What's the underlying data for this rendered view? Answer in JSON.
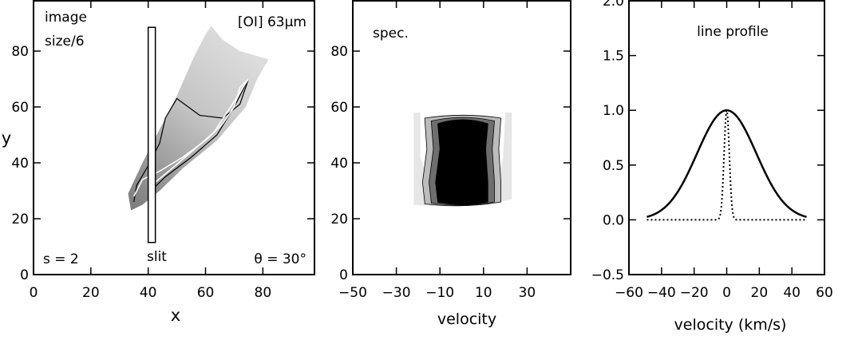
{
  "chart_data": [
    {
      "type": "heatmap",
      "panel": "image",
      "annotations": {
        "top_left_line1": "image",
        "top_left_line2": "size/6",
        "top_right": "[OI] 63μm",
        "bottom_left": "s = 2",
        "bottom_right": "θ = 30°",
        "slit_label": "slit"
      },
      "xlabel": "x",
      "ylabel": "y",
      "xlim": [
        0,
        98
      ],
      "ylim": [
        0,
        98
      ],
      "xticks": [
        0,
        20,
        40,
        60,
        80
      ],
      "yticks": [
        0,
        20,
        40,
        60,
        80
      ],
      "slit": {
        "x": [
          40,
          42.5
        ],
        "y": [
          11.5,
          88.5
        ]
      },
      "emission_region": [
        [
          34,
          23
        ],
        [
          33,
          29
        ],
        [
          38,
          40
        ],
        [
          44,
          52
        ],
        [
          50,
          64
        ],
        [
          56,
          78
        ],
        [
          60,
          86
        ],
        [
          62,
          89
        ],
        [
          66,
          84
        ],
        [
          72,
          80
        ],
        [
          82,
          77
        ],
        [
          78,
          70
        ],
        [
          74,
          60
        ],
        [
          64,
          48
        ],
        [
          52,
          38
        ],
        [
          44,
          30
        ],
        [
          38,
          25
        ]
      ],
      "bright_inner_contour": [
        [
          35,
          28
        ],
        [
          38,
          34
        ],
        [
          44,
          37
        ],
        [
          52,
          42
        ],
        [
          60,
          48
        ],
        [
          66,
          54
        ],
        [
          70,
          60
        ],
        [
          72,
          67
        ],
        [
          75,
          70
        ],
        [
          70,
          62
        ],
        [
          63,
          51
        ],
        [
          54,
          43
        ],
        [
          46,
          36
        ],
        [
          40,
          31
        ]
      ],
      "outer_contour": [
        [
          35,
          26
        ],
        [
          36,
          32
        ],
        [
          40,
          39
        ],
        [
          44,
          47
        ],
        [
          46,
          56
        ],
        [
          50,
          63
        ],
        [
          58,
          57
        ],
        [
          66,
          56
        ],
        [
          72,
          61
        ],
        [
          75,
          70
        ],
        [
          70,
          60
        ],
        [
          64,
          50
        ],
        [
          55,
          42
        ],
        [
          46,
          35
        ],
        [
          40,
          29
        ]
      ],
      "gray_colors": [
        "#dcdcdc",
        "#c4c4c4",
        "#9e9e9e",
        "#7a7a7a"
      ]
    },
    {
      "type": "heatmap",
      "panel": "spectrum",
      "annotation": "spec.",
      "xlabel": "velocity",
      "xlim": [
        -50,
        50
      ],
      "ylim": [
        0,
        98
      ],
      "xticks": [
        -50,
        -30,
        -10,
        10,
        30
      ],
      "yticks": [
        0,
        20,
        40,
        60,
        80
      ],
      "blob_contours": [
        {
          "level": "outer",
          "color": "#e6e6e6",
          "left": [
            [
              -22,
              27
            ],
            [
              -22,
              58
            ],
            [
              -19,
              58
            ],
            [
              -19,
              42
            ],
            [
              -16,
              35
            ]
          ],
          "right": [
            [
              23,
              27
            ],
            [
              23,
              58
            ],
            [
              20,
              58
            ],
            [
              19,
              42
            ],
            [
              17,
              35
            ]
          ]
        },
        {
          "level": 2,
          "color": "#bcbcbc",
          "left": [
            [
              -17,
              26
            ],
            [
              -18,
              33
            ],
            [
              -16,
              45
            ],
            [
              -17,
              56
            ]
          ],
          "right": [
            [
              18,
              26
            ],
            [
              18,
              33
            ],
            [
              17,
              45
            ],
            [
              18,
              56
            ]
          ]
        },
        {
          "level": 3,
          "color": "#6e6e6e",
          "left": [
            [
              -14,
              26
            ],
            [
              -15,
              33
            ],
            [
              -13,
              45
            ],
            [
              -14,
              55
            ]
          ],
          "right": [
            [
              15,
              26
            ],
            [
              15,
              33
            ],
            [
              14,
              45
            ],
            [
              15,
              55
            ]
          ]
        },
        {
          "level": 4,
          "color": "#000000",
          "left": [
            [
              -11,
              26
            ],
            [
              -12,
              33
            ],
            [
              -10,
              45
            ],
            [
              -11,
              54
            ]
          ],
          "right": [
            [
              12,
              26
            ],
            [
              12,
              33
            ],
            [
              11,
              45
            ],
            [
              12,
              54
            ]
          ]
        }
      ],
      "blob_y_range": [
        25,
        57
      ]
    },
    {
      "type": "line",
      "panel": "line profile",
      "annotation": "line profile",
      "xlabel": "velocity (km/s)",
      "xlim": [
        -60,
        60
      ],
      "ylim": [
        -0.5,
        2.0
      ],
      "xticks": [
        -60,
        -40,
        -20,
        0,
        20,
        40,
        60
      ],
      "yticks": [
        -0.5,
        0.0,
        0.5,
        1.0,
        1.5,
        2.0
      ],
      "series": [
        {
          "style": "solid",
          "gaussian": {
            "amplitude": 1.0,
            "center": 0,
            "sigma": 18.2,
            "x_range": [
              -49,
              49
            ]
          }
        },
        {
          "style": "dotted",
          "gaussian": {
            "amplitude": 1.0,
            "center": 0,
            "sigma": 1.6,
            "x_range": [
              -49,
              49
            ]
          }
        }
      ]
    }
  ]
}
